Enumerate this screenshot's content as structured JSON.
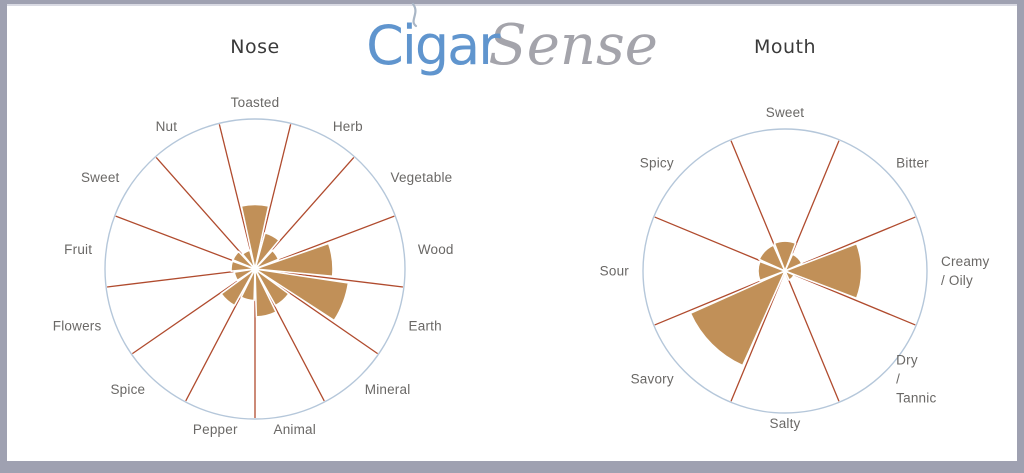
{
  "frame": {
    "border_color": "#9fa1b1",
    "inner_top_line_color": "#d9dae3",
    "background": "#ffffff"
  },
  "logo": {
    "part1": "Cigar",
    "part2": "Sense",
    "part1_color": "#6095ce",
    "part2_color": "#a4a4ab",
    "smoke_icon": "smoke-wisp"
  },
  "chart_data": [
    {
      "type": "rose",
      "title": "Nose",
      "orientation": "first category centered at top, categories clockwise",
      "scale": {
        "min": 0,
        "max": 100,
        "note": "values are intensity as % of full radius; outer ring = 100"
      },
      "grid": false,
      "legend": false,
      "categories": [
        "Toasted",
        "Herb",
        "Vegetable",
        "Wood",
        "Earth",
        "Mineral",
        "Animal",
        "Pepper",
        "Spice",
        "Flowers",
        "Fruit",
        "Sweet",
        "Nut"
      ],
      "values": [
        43,
        25,
        17,
        52,
        63,
        28,
        32,
        21,
        28,
        14,
        16,
        16,
        13
      ],
      "label_lines": [
        [
          "Toasted"
        ],
        [
          "Herb"
        ],
        [
          "Vegetable"
        ],
        [
          "Wood"
        ],
        [
          "Earth"
        ],
        [
          "Mineral"
        ],
        [
          "Animal"
        ],
        [
          "Pepper"
        ],
        [
          "Spice"
        ],
        [
          "Flowers"
        ],
        [
          "Fruit"
        ],
        [
          "Sweet"
        ],
        [
          "Nut"
        ]
      ],
      "colors": {
        "fill": "#c19058",
        "divider": "#b04b2e",
        "ring": "#b5c7da",
        "label": "#6a6866",
        "title": "#3a3a3a"
      }
    },
    {
      "type": "rose",
      "title": "Mouth",
      "orientation": "first category centered at top, categories clockwise",
      "scale": {
        "min": 0,
        "max": 100,
        "note": "values are intensity as % of full radius; outer ring = 100"
      },
      "grid": false,
      "legend": false,
      "categories": [
        "Sweet",
        "Bitter",
        "Creamy / Oily",
        "Dry / Tannic",
        "Salty",
        "Savory",
        "Sour",
        "Spicy"
      ],
      "values": [
        21,
        13,
        54,
        7,
        2,
        73,
        19,
        20
      ],
      "label_lines": [
        [
          "Sweet"
        ],
        [
          "Bitter"
        ],
        [
          "Creamy",
          "/ Oily"
        ],
        [
          "Dry",
          "/",
          "Tannic"
        ],
        [
          "Salty"
        ],
        [
          "Savory"
        ],
        [
          "Sour"
        ],
        [
          "Spicy"
        ]
      ],
      "colors": {
        "fill": "#c19058",
        "divider": "#b04b2e",
        "ring": "#b5c7da",
        "label": "#6a6866",
        "title": "#3a3a3a"
      }
    }
  ]
}
